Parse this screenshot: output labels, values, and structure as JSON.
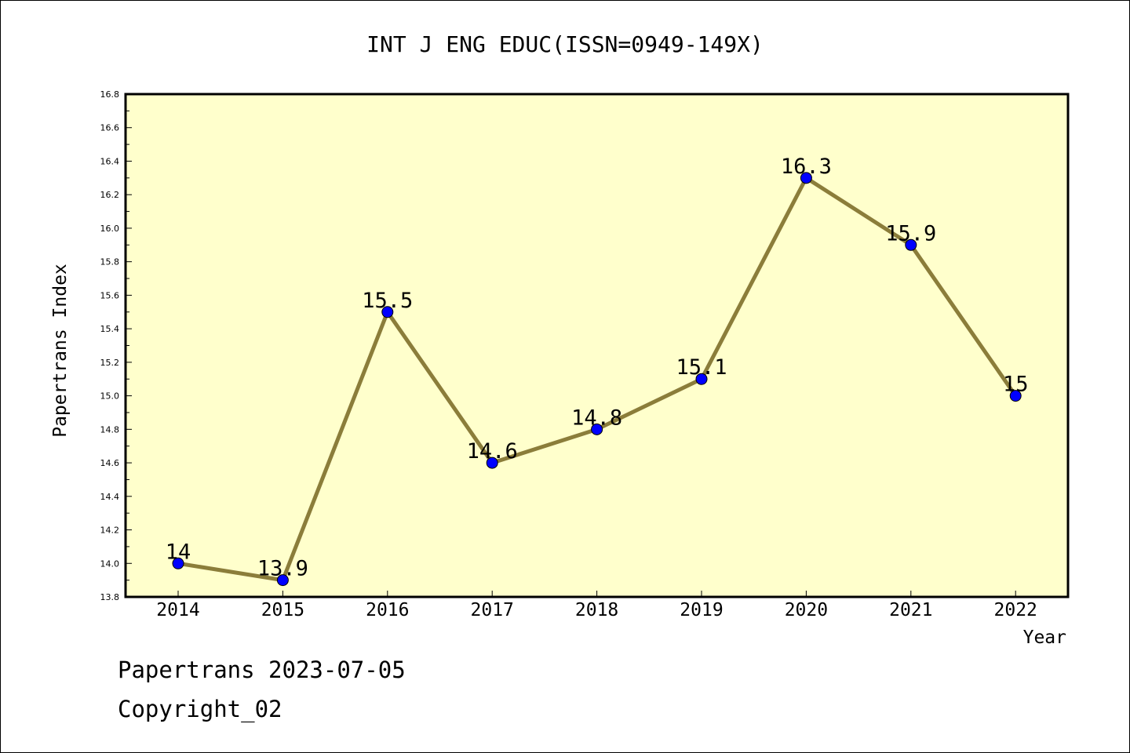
{
  "chart_data": {
    "type": "line",
    "title": "INT J ENG EDUC(ISSN=0949-149X)",
    "xlabel": "Year",
    "ylabel": "Papertrans Index",
    "categories": [
      "2014",
      "2015",
      "2016",
      "2017",
      "2018",
      "2019",
      "2020",
      "2021",
      "2022"
    ],
    "values": [
      14.0,
      13.9,
      15.5,
      14.6,
      14.8,
      15.1,
      16.3,
      15.9,
      15.0
    ],
    "data_labels": [
      "14",
      "13.9",
      "15.5",
      "14.6",
      "14.8",
      "15.1",
      "16.3",
      "15.9",
      "15"
    ],
    "ylim": [
      13.8,
      16.8
    ],
    "y_ticks": [
      "13.8",
      "14.0",
      "14.2",
      "14.4",
      "14.6",
      "14.8",
      "15.0",
      "15.2",
      "15.4",
      "15.6",
      "15.8",
      "16.0",
      "16.2",
      "16.4",
      "16.6",
      "16.8"
    ],
    "grid": false,
    "legend": "none",
    "colors": {
      "plot_background": "#ffffcc",
      "line": "#8b7d3a",
      "marker": "#0000ff"
    }
  },
  "footer": {
    "line1": "Papertrans 2023-07-05",
    "line2": "Copyright_02"
  }
}
